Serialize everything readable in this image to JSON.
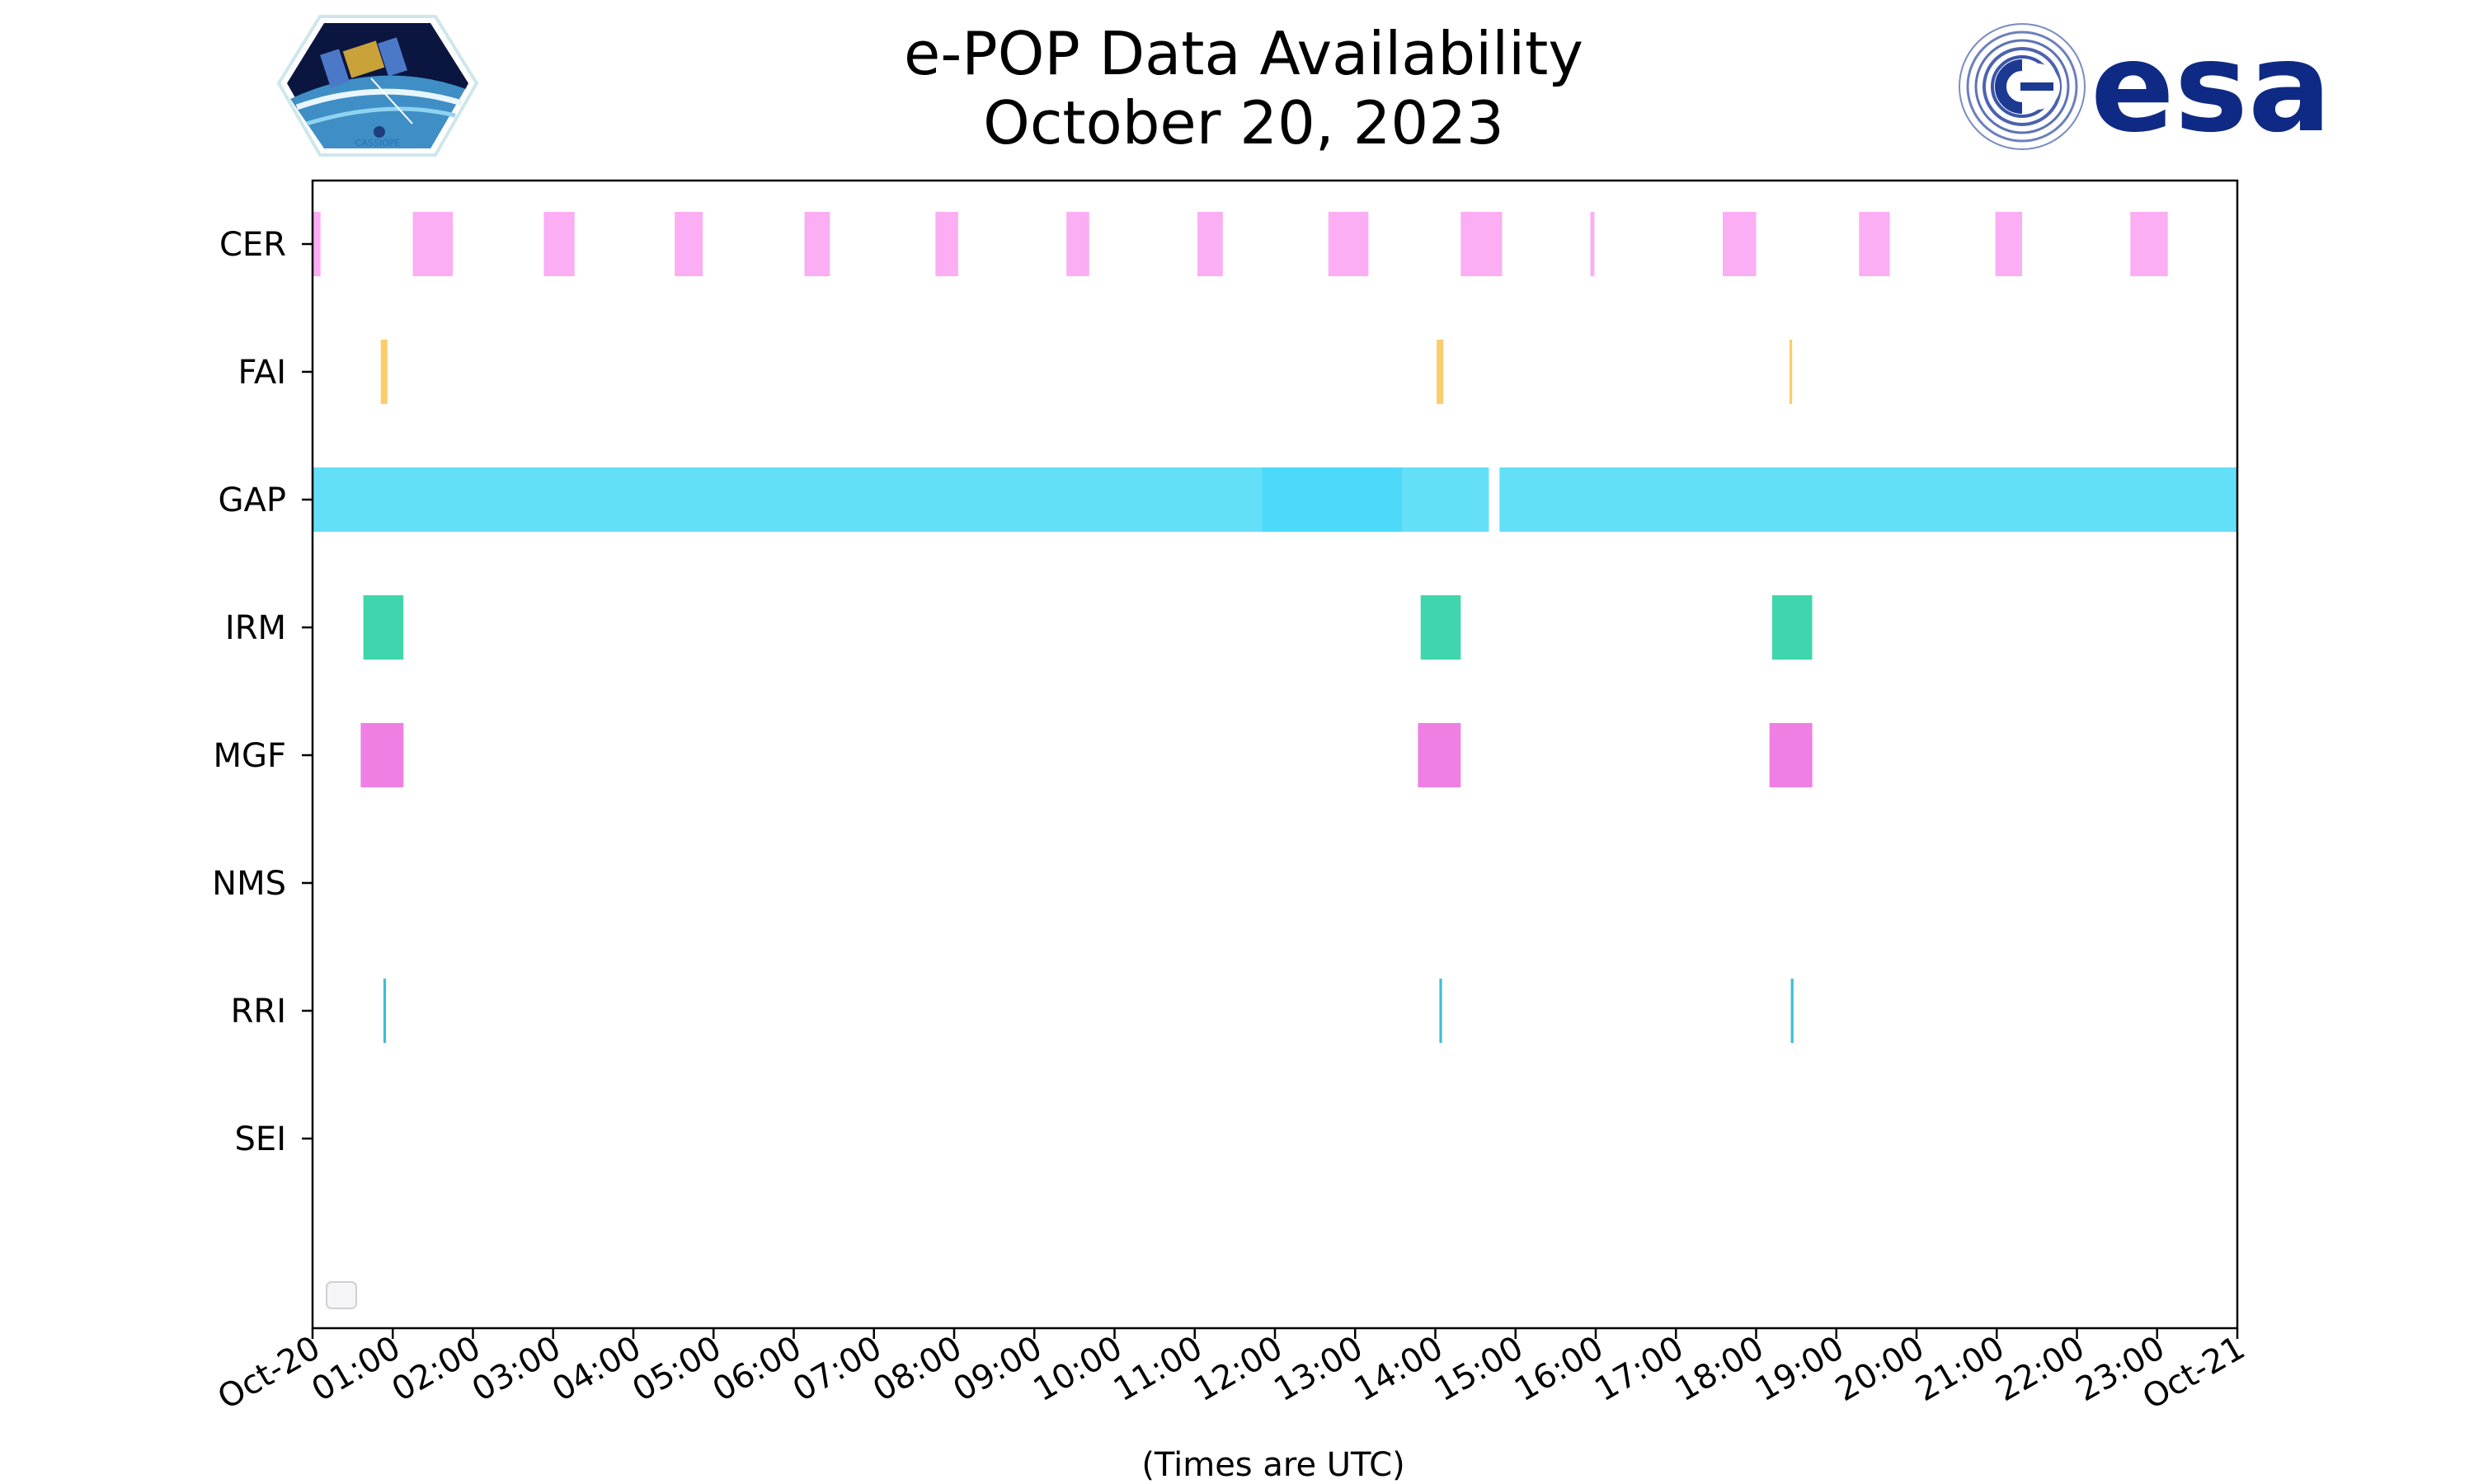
{
  "title": {
    "line1": "e-POP Data Availability",
    "line2": "October 20, 2023"
  },
  "logos": {
    "left": "CASSIOPE",
    "right": "esa"
  },
  "chart_data": {
    "type": "timeline",
    "xlabel": "(Times are UTC)",
    "x_range": [
      "2023-10-20 00:00",
      "2023-10-21 00:00"
    ],
    "x_ticks": [
      "Oct-20",
      "01:00",
      "02:00",
      "03:00",
      "04:00",
      "05:00",
      "06:00",
      "07:00",
      "08:00",
      "09:00",
      "10:00",
      "11:00",
      "12:00",
      "13:00",
      "14:00",
      "15:00",
      "16:00",
      "17:00",
      "18:00",
      "19:00",
      "20:00",
      "21:00",
      "22:00",
      "23:00",
      "Oct-21"
    ],
    "grid": false,
    "legend": "lower-left (empty)",
    "categories": [
      "CER",
      "FAI",
      "GAP",
      "IRM",
      "MGF",
      "NMS",
      "RRI",
      "SEI"
    ],
    "series": [
      {
        "instrument": "CER",
        "color": "#fbaef4",
        "intervals": [
          [
            "00:00",
            "00:06"
          ],
          [
            "01:15",
            "01:45"
          ],
          [
            "02:53",
            "03:16"
          ],
          [
            "04:31",
            "04:52"
          ],
          [
            "06:08",
            "06:27"
          ],
          [
            "07:46",
            "08:03"
          ],
          [
            "09:24",
            "09:41"
          ],
          [
            "11:02",
            "11:21"
          ],
          [
            "12:40",
            "13:10"
          ],
          [
            "14:19",
            "14:50"
          ],
          [
            "15:56",
            "15:59"
          ],
          [
            "17:35",
            "18:00"
          ],
          [
            "19:17",
            "19:40"
          ],
          [
            "20:59",
            "21:19"
          ],
          [
            "22:40",
            "23:08"
          ]
        ]
      },
      {
        "instrument": "FAI",
        "color": "#fbcc6b",
        "intervals": [
          [
            "00:51",
            "00:56"
          ],
          [
            "14:01",
            "14:06"
          ],
          [
            "18:25",
            "18:27"
          ]
        ]
      },
      {
        "instrument": "GAP",
        "color": "#63dff8",
        "intervals": [
          [
            "00:00",
            "11:50"
          ],
          [
            "11:50",
            "13:35"
          ],
          [
            "13:35",
            "14:40"
          ],
          [
            "14:48",
            "24:00"
          ]
        ]
      },
      {
        "instrument": "IRM",
        "color": "#3fd6ad",
        "intervals": [
          [
            "00:38",
            "01:08"
          ],
          [
            "13:49",
            "14:19"
          ],
          [
            "18:12",
            "18:42"
          ]
        ]
      },
      {
        "instrument": "MGF",
        "color": "#f07fe4",
        "intervals": [
          [
            "00:36",
            "01:08"
          ],
          [
            "13:47",
            "14:19"
          ],
          [
            "18:10",
            "18:42"
          ]
        ]
      },
      {
        "instrument": "NMS",
        "color": "#cccccc",
        "intervals": []
      },
      {
        "instrument": "RRI",
        "color": "#3dbdd9",
        "intervals": [
          [
            "00:53",
            "00:55"
          ],
          [
            "14:03",
            "14:05"
          ],
          [
            "18:26",
            "18:28"
          ]
        ]
      },
      {
        "instrument": "SEI",
        "color": "#cccccc",
        "intervals": []
      }
    ]
  }
}
